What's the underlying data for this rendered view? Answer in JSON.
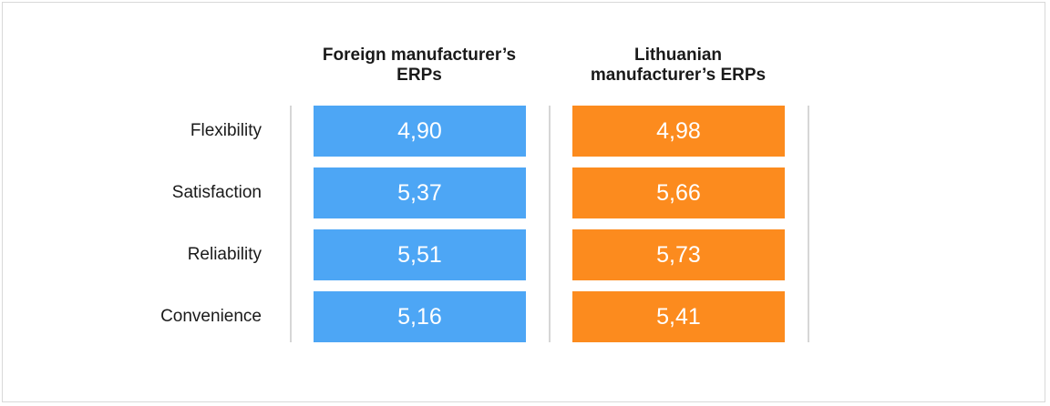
{
  "chart_data": {
    "type": "table",
    "columns": [
      "Foreign manufacturer’s ERPs",
      "Lithuanian manufacturer’s ERPs"
    ],
    "column_header_lines": [
      [
        "Foreign manufacturer’s",
        "ERPs"
      ],
      [
        "Lithuanian",
        "manufacturer’s ERPs"
      ]
    ],
    "rows": [
      "Flexibility",
      "Satisfaction",
      "Reliability",
      "Convenience"
    ],
    "series": [
      {
        "name": "Foreign manufacturer’s ERPs",
        "values": [
          4.9,
          5.37,
          5.51,
          5.16
        ],
        "labels": [
          "4,90",
          "5,37",
          "5,51",
          "5,16"
        ],
        "color": "#4da6f5"
      },
      {
        "name": "Lithuanian manufacturer’s ERPs",
        "values": [
          4.98,
          5.66,
          5.73,
          5.41
        ],
        "labels": [
          "4,98",
          "5,66",
          "5,73",
          "5,41"
        ],
        "color": "#fc8b1e"
      }
    ]
  }
}
